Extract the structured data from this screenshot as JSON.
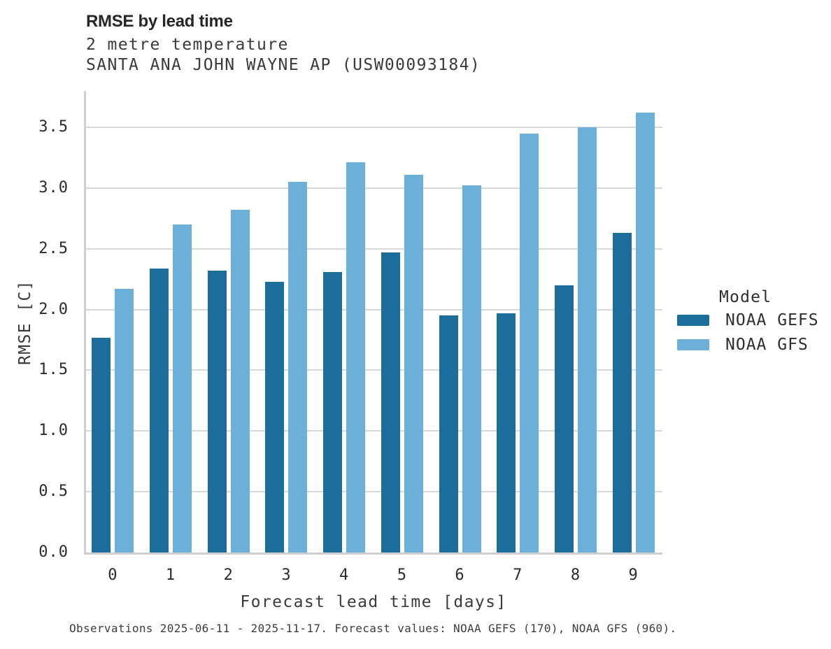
{
  "figure": {
    "title": "RMSE by lead time",
    "subtitle_line1": "2 metre temperature",
    "subtitle_line2": "SANTA ANA JOHN WAYNE AP (USW00093184)",
    "footnote": "Observations 2025-06-11 - 2025-11-17. Forecast values: NOAA GEFS (170), NOAA GFS (960)."
  },
  "legend": {
    "title": "Model",
    "items": [
      {
        "label": "NOAA GEFS",
        "color": "#1d6d9c"
      },
      {
        "label": "NOAA GFS",
        "color": "#6cb0da"
      }
    ]
  },
  "chart_data": {
    "type": "bar",
    "title": "RMSE by lead time",
    "subtitle": [
      "2 metre temperature",
      "SANTA ANA JOHN WAYNE AP (USW00093184)"
    ],
    "xlabel": "Forecast lead time [days]",
    "ylabel": "RMSE [C]",
    "categories": [
      "0",
      "1",
      "2",
      "3",
      "4",
      "5",
      "6",
      "7",
      "8",
      "9"
    ],
    "series": [
      {
        "name": "NOAA GEFS",
        "color": "#1d6d9c",
        "values": [
          1.77,
          2.34,
          2.32,
          2.23,
          2.31,
          2.47,
          1.95,
          1.97,
          2.2,
          2.63
        ]
      },
      {
        "name": "NOAA GFS",
        "color": "#6cb0da",
        "values": [
          2.17,
          2.7,
          2.82,
          3.05,
          3.21,
          3.11,
          3.02,
          3.45,
          3.5,
          3.62
        ]
      }
    ],
    "ylim": [
      0,
      3.8
    ],
    "yticks": [
      0.0,
      0.5,
      1.0,
      1.5,
      2.0,
      2.5,
      3.0,
      3.5
    ],
    "grid": true,
    "legend_position": "right",
    "legend_title": "Model",
    "footnote": "Observations 2025-06-11 - 2025-11-17. Forecast values: NOAA GEFS (170), NOAA GFS (960)."
  }
}
